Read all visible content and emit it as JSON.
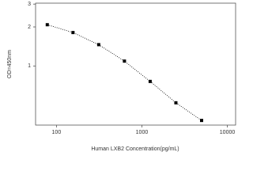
{
  "chart_data": {
    "type": "line",
    "x_label": "Human LXB2 Concentration(pg/mL)",
    "y_label": "OD=450nm",
    "x": [
      78.125,
      156.25,
      312.5,
      625,
      1250,
      2500,
      5000
    ],
    "series": [
      {
        "color": "#000000",
        "values": [
          2.08,
          1.81,
          1.46,
          1.09,
          0.76,
          0.52,
          0.38
        ]
      }
    ],
    "xlim": [
      57,
      12500
    ],
    "ylim": [
      0.35,
      3.05
    ],
    "xticks": [
      100,
      1000,
      10000
    ],
    "yticks": [
      1,
      2,
      3
    ],
    "log_x": true,
    "log_y": true,
    "markers": true,
    "line_style": "dotted"
  }
}
